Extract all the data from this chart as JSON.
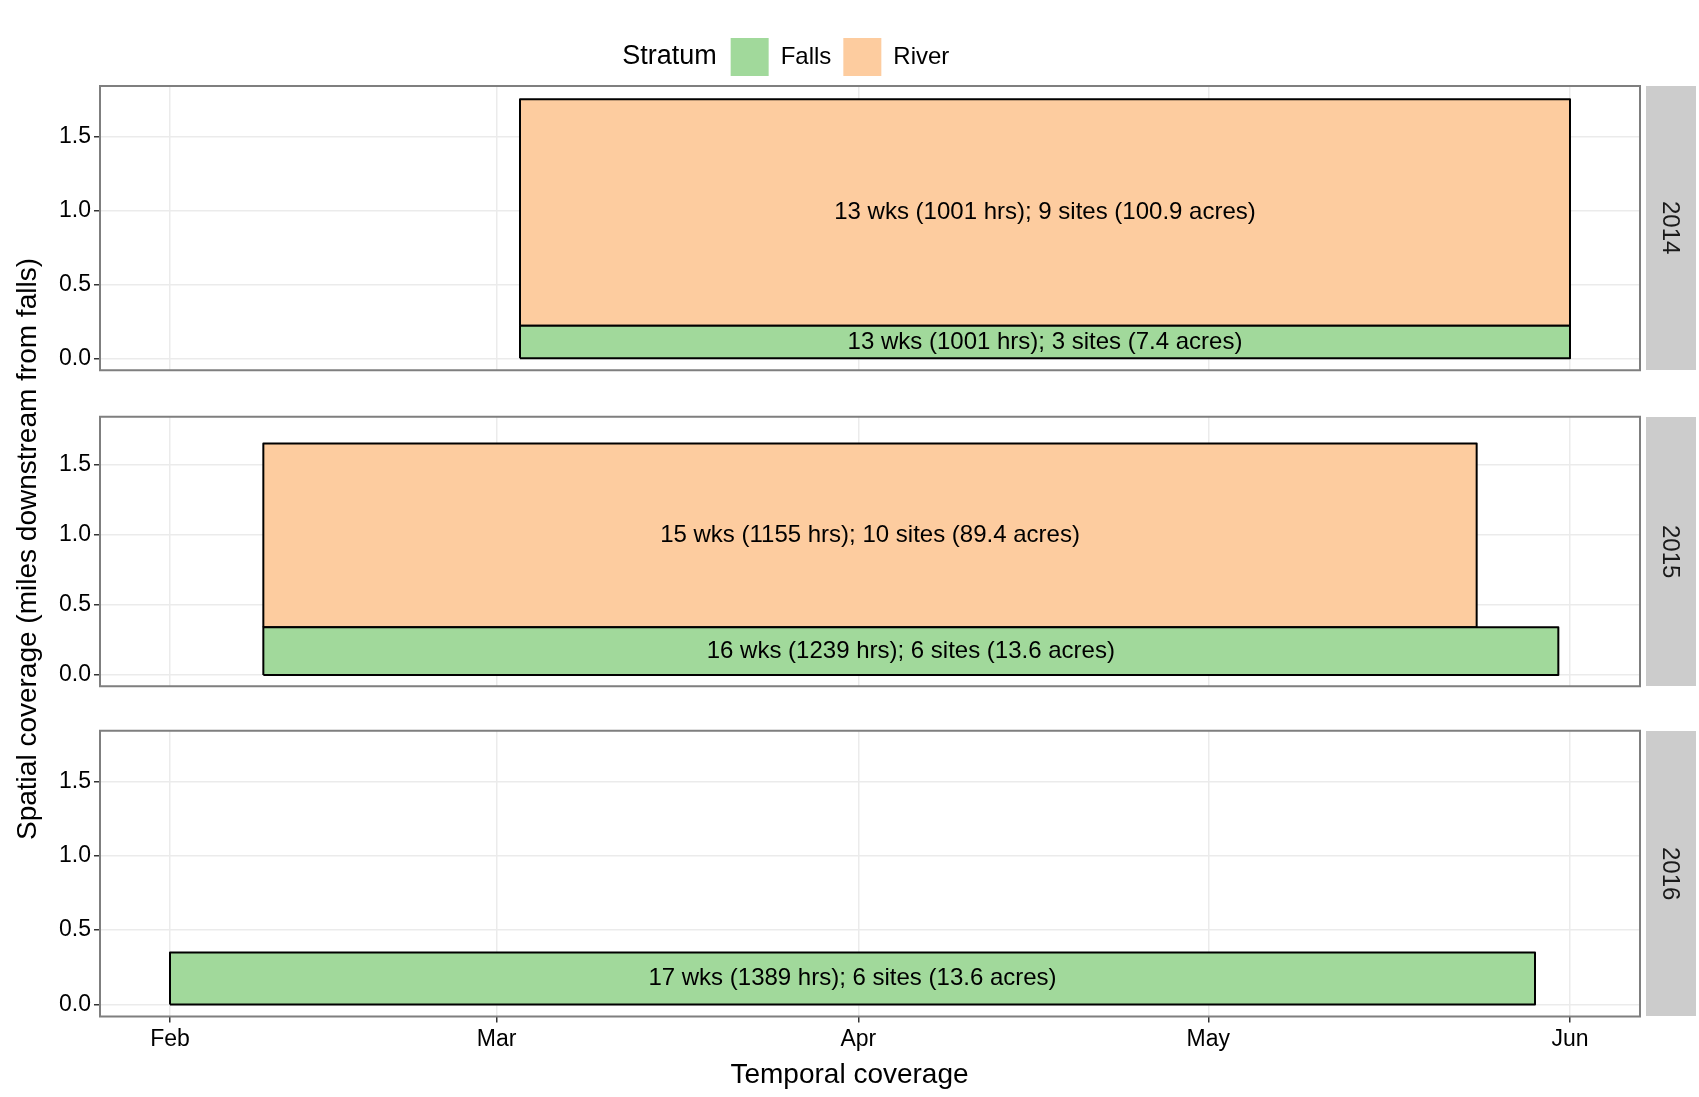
{
  "chart_data": [
    {
      "type": "area",
      "stacked": true,
      "legend": "top",
      "legend_title": "Stratum",
      "grid": true,
      "tick_labels": "y",
      "xlim": [
        "--01-26",
        "--06-07"
      ],
      "xticks": [
        {
          "value": "--02-01",
          "label": null
        },
        {
          "value": "--03-01",
          "label": null
        },
        {
          "value": "--04-01",
          "label": null
        },
        {
          "value": "--05-01",
          "label": null
        },
        {
          "value": "--06-01",
          "label": null
        }
      ],
      "ylim": [
        -0.08,
        1.84
      ],
      "yticks": [
        {
          "value": 0,
          "label": "0.0"
        },
        {
          "value": 0.5,
          "label": "0.5"
        },
        {
          "value": 1,
          "label": "1.0"
        },
        {
          "value": 1.5,
          "label": "1.5"
        }
      ],
      "series": [
        {
          "name": "Falls",
          "color": "#a1d99b",
          "x": [
            "--03-03",
            "--06-01"
          ],
          "values": [
            0.22,
            0.22
          ]
        },
        {
          "name": "River",
          "color": "#fdcc9f",
          "x": [
            "--03-03",
            "--06-01"
          ],
          "values": [
            1.53,
            1.53
          ]
        }
      ],
      "annotations": [
        "13 wks (1001 hrs); 3 sites (7.4 acres)",
        "13 wks (1001 hrs); 9 sites (100.9 acres)",
        "2014"
      ]
    },
    {
      "type": "area",
      "stacked": true,
      "ylabel": "Spatial coverage (miles downstream from falls)",
      "grid": true,
      "tick_labels": "y",
      "xlim": [
        "--01-26",
        "--06-07"
      ],
      "xticks": [
        {
          "value": "--02-01",
          "label": null
        },
        {
          "value": "--03-01",
          "label": null
        },
        {
          "value": "--04-01",
          "label": null
        },
        {
          "value": "--05-01",
          "label": null
        },
        {
          "value": "--06-01",
          "label": null
        }
      ],
      "ylim": [
        -0.08,
        1.84
      ],
      "yticks": [
        {
          "value": 0,
          "label": "0.0"
        },
        {
          "value": 0.5,
          "label": "0.5"
        },
        {
          "value": 1,
          "label": "1.0"
        },
        {
          "value": 1.5,
          "label": "1.5"
        }
      ],
      "series": [
        {
          "color": "#a1d99b",
          "x": [
            "--02-09",
            "--05-31"
          ],
          "values": [
            0.34,
            0.34
          ]
        },
        {
          "color": "#fdcc9f",
          "x": [
            "--02-09",
            "--05-24"
          ],
          "values": [
            1.31,
            1.31
          ]
        }
      ],
      "annotations": [
        "16 wks (1239 hrs); 6 sites (13.6 acres)",
        "15 wks (1155 hrs); 10 sites (89.4 acres)",
        "2015"
      ]
    },
    {
      "type": "area",
      "xlabel": "Temporal coverage",
      "grid": true,
      "xlim": [
        "--01-26",
        "--06-07"
      ],
      "xticks": [
        {
          "value": "--02-01",
          "label": "Feb"
        },
        {
          "value": "--03-01",
          "label": "Mar"
        },
        {
          "value": "--04-01",
          "label": "Apr"
        },
        {
          "value": "--05-01",
          "label": "May"
        },
        {
          "value": "--06-01",
          "label": "Jun"
        }
      ],
      "ylim": [
        -0.08,
        1.84
      ],
      "yticks": [
        {
          "value": 0,
          "label": "0.0"
        },
        {
          "value": 0.5,
          "label": "0.5"
        },
        {
          "value": 1,
          "label": "1.0"
        },
        {
          "value": 1.5,
          "label": "1.5"
        }
      ],
      "series": [
        {
          "color": "#a1d99b",
          "x": [
            "--02-01",
            "--05-29"
          ],
          "values": [
            0.35,
            0.35
          ]
        }
      ],
      "annotations": [
        "17 wks (1389 hrs); 6 sites (13.6 acres)",
        "2016"
      ]
    }
  ]
}
